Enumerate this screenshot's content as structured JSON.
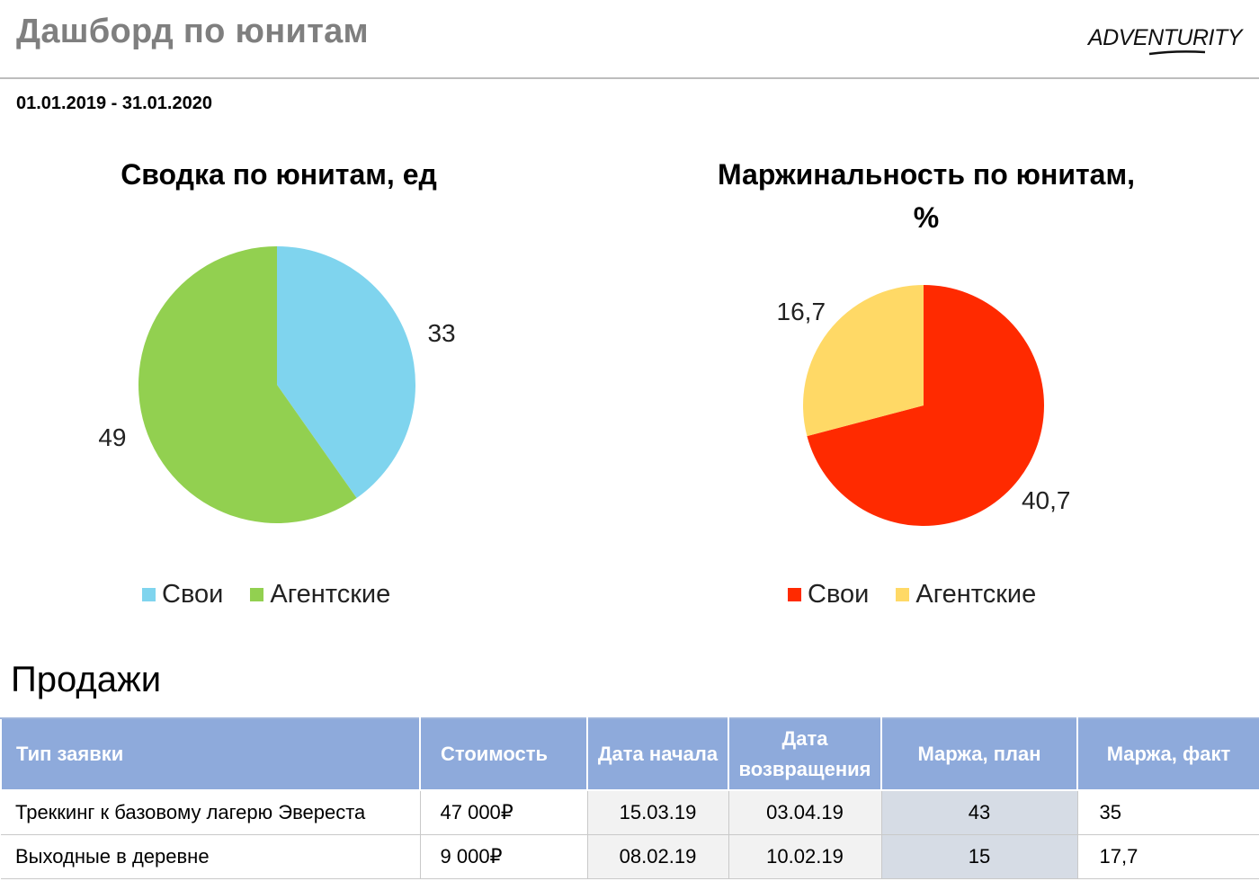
{
  "header": {
    "title": "Дашборд по юнитам",
    "logo_text": "ADVENTURITY"
  },
  "date_range": "01.01.2019 - 31.01.2020",
  "colors": {
    "svoi_blue": "#7fd4ee",
    "agent_green": "#92d050",
    "svoi_red": "#ff2a00",
    "agent_yellow": "#ffd966",
    "table_header": "#8eaadb"
  },
  "chart_data": [
    {
      "type": "pie",
      "title": "Сводка по юнитам, ед",
      "categories": [
        "Свои",
        "Агентские"
      ],
      "values": [
        33,
        49
      ],
      "value_labels": [
        "33",
        "49"
      ],
      "colors": [
        "#7fd4ee",
        "#92d050"
      ],
      "legend_position": "bottom"
    },
    {
      "type": "pie",
      "title": "Маржинальность по юнитам, %",
      "categories": [
        "Свои",
        "Агентские"
      ],
      "values": [
        40.7,
        16.7
      ],
      "value_labels": [
        "40,7",
        "16,7"
      ],
      "colors": [
        "#ff2a00",
        "#ffd966"
      ],
      "legend_position": "bottom"
    }
  ],
  "sales": {
    "title": "Продажи",
    "columns": [
      "Тип заявки",
      "Стоимость",
      "Дата начала",
      "Дата возвращения",
      "Маржа, план",
      "Маржа, факт"
    ],
    "rows": [
      [
        "Треккинг к базовому лагерю Эвереста",
        "47 000₽",
        "15.03.19",
        "03.04.19",
        "43",
        "35"
      ],
      [
        "Выходные в деревне",
        "9 000₽",
        "08.02.19",
        "10.02.19",
        "15",
        "17,7"
      ]
    ]
  }
}
